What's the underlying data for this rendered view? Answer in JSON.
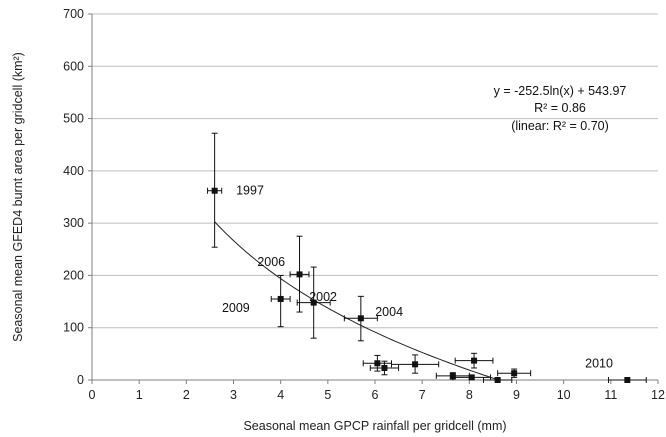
{
  "chart_data": {
    "type": "scatter",
    "xlabel": "Seasonal mean GPCP rainfall per gridcell (mm)",
    "ylabel": "Seasonal mean GFED4 burnt area per gridcell (km²)",
    "xlim": [
      0,
      12
    ],
    "ylim": [
      0,
      700
    ],
    "xticks": [
      "0",
      "1",
      "2",
      "3",
      "4",
      "5",
      "6",
      "7",
      "8",
      "9",
      "10",
      "11",
      "12"
    ],
    "yticks": [
      "0",
      "100",
      "200",
      "300",
      "400",
      "500",
      "600",
      "700"
    ],
    "grid": "horizontal",
    "points": [
      {
        "x": 2.6,
        "y": 362,
        "xerr": 0.15,
        "yerr_lo": 108,
        "yerr_hi": 110
      },
      {
        "x": 4.4,
        "y": 202,
        "xerr": 0.2,
        "yerr_lo": 72,
        "yerr_hi": 73
      },
      {
        "x": 4.0,
        "y": 155,
        "xerr": 0.2,
        "yerr_lo": 53,
        "yerr_hi": 45
      },
      {
        "x": 4.7,
        "y": 148,
        "xerr": 0.35,
        "yerr_lo": 68,
        "yerr_hi": 68
      },
      {
        "x": 5.7,
        "y": 118,
        "xerr": 0.35,
        "yerr_lo": 43,
        "yerr_hi": 42
      },
      {
        "x": 6.05,
        "y": 32,
        "xerr": 0.3,
        "yerr_lo": 15,
        "yerr_hi": 15
      },
      {
        "x": 6.2,
        "y": 23,
        "xerr": 0.3,
        "yerr_lo": 13,
        "yerr_hi": 13
      },
      {
        "x": 6.85,
        "y": 30,
        "xerr": 0.5,
        "yerr_lo": 17,
        "yerr_hi": 18
      },
      {
        "x": 7.65,
        "y": 8,
        "xerr": 0.35,
        "yerr_lo": 6,
        "yerr_hi": 6
      },
      {
        "x": 8.05,
        "y": 5,
        "xerr": 0.4,
        "yerr_lo": 4,
        "yerr_hi": 4
      },
      {
        "x": 8.1,
        "y": 37,
        "xerr": 0.4,
        "yerr_lo": 14,
        "yerr_hi": 14
      },
      {
        "x": 8.6,
        "y": 0,
        "xerr": 0.3,
        "yerr_lo": 0,
        "yerr_hi": 2
      },
      {
        "x": 8.95,
        "y": 13,
        "xerr": 0.35,
        "yerr_lo": 8,
        "yerr_hi": 8
      },
      {
        "x": 11.35,
        "y": 0,
        "xerr": 0.4,
        "yerr_lo": 0,
        "yerr_hi": 0
      }
    ],
    "year_labels": [
      {
        "text": "1997",
        "x": 3.35,
        "y": 362
      },
      {
        "text": "2006",
        "x": 3.8,
        "y": 226
      },
      {
        "text": "2009",
        "x": 3.05,
        "y": 138
      },
      {
        "text": "2002",
        "x": 4.9,
        "y": 159
      },
      {
        "text": "2004",
        "x": 6.3,
        "y": 130
      },
      {
        "text": "2010",
        "x": 10.75,
        "y": 32
      }
    ],
    "fit": {
      "equation": "y = -252.5ln(x) + 543.97",
      "a": -252.5,
      "b": 543.97,
      "x_range": [
        2.6,
        8.6
      ],
      "r2": "R² = 0.86",
      "linear": "(linear: R² = 0.70)"
    },
    "colors": {
      "marker": "#111111",
      "grid": "#bdbdbd",
      "axis": "#7f7f7f"
    }
  }
}
